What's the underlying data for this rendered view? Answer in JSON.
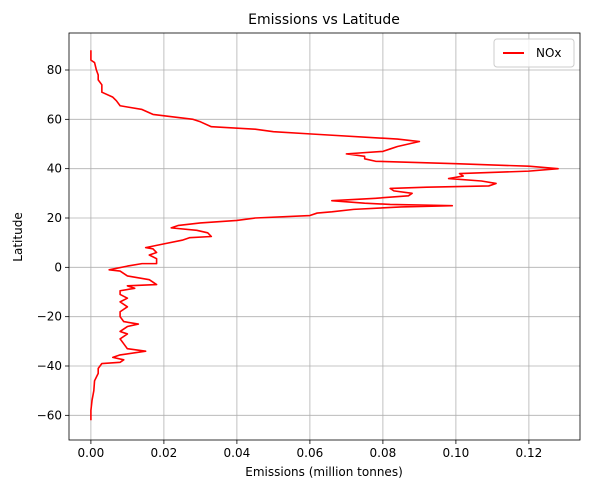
{
  "chart_data": {
    "type": "line",
    "title": "Emissions vs Latitude",
    "xlabel": "Emissions (million tonnes)",
    "ylabel": "Latitude",
    "xlim": [
      -0.006,
      0.134
    ],
    "ylim": [
      -70,
      95
    ],
    "xticks": [
      0.0,
      0.02,
      0.04,
      0.06,
      0.08,
      0.1,
      0.12
    ],
    "xtick_labels": [
      "0.00",
      "0.02",
      "0.04",
      "0.06",
      "0.08",
      "0.10",
      "0.12"
    ],
    "yticks": [
      -60,
      -40,
      -20,
      0,
      20,
      40,
      60,
      80
    ],
    "ytick_labels": [
      "−60",
      "−40",
      "−20",
      "0",
      "20",
      "40",
      "60",
      "80"
    ],
    "grid": true,
    "legend_position": "top-right",
    "series": [
      {
        "name": "NOx",
        "color": "#ff0000",
        "points": [
          [
            0.0,
            -62
          ],
          [
            0.0,
            -58
          ],
          [
            0.0003,
            -54
          ],
          [
            0.0008,
            -50
          ],
          [
            0.001,
            -46
          ],
          [
            0.002,
            -43
          ],
          [
            0.002,
            -41
          ],
          [
            0.003,
            -39
          ],
          [
            0.008,
            -38.5
          ],
          [
            0.009,
            -37.5
          ],
          [
            0.006,
            -36.5
          ],
          [
            0.008,
            -35.5
          ],
          [
            0.015,
            -34
          ],
          [
            0.01,
            -33
          ],
          [
            0.009,
            -31
          ],
          [
            0.008,
            -29
          ],
          [
            0.01,
            -27
          ],
          [
            0.008,
            -26
          ],
          [
            0.01,
            -24
          ],
          [
            0.013,
            -23
          ],
          [
            0.009,
            -22
          ],
          [
            0.008,
            -20
          ],
          [
            0.008,
            -18
          ],
          [
            0.01,
            -16
          ],
          [
            0.008,
            -14
          ],
          [
            0.01,
            -12.5
          ],
          [
            0.008,
            -11
          ],
          [
            0.008,
            -9.5
          ],
          [
            0.012,
            -8.5
          ],
          [
            0.01,
            -7.5
          ],
          [
            0.018,
            -7
          ],
          [
            0.016,
            -5
          ],
          [
            0.01,
            -3.5
          ],
          [
            0.008,
            -1.5
          ],
          [
            0.005,
            -1
          ],
          [
            0.01,
            0.5
          ],
          [
            0.014,
            1.5
          ],
          [
            0.018,
            1.5
          ],
          [
            0.018,
            3.5
          ],
          [
            0.016,
            5
          ],
          [
            0.018,
            6
          ],
          [
            0.017,
            7.5
          ],
          [
            0.015,
            8
          ],
          [
            0.02,
            9.5
          ],
          [
            0.025,
            11
          ],
          [
            0.027,
            12
          ],
          [
            0.033,
            12.5
          ],
          [
            0.032,
            14
          ],
          [
            0.029,
            15
          ],
          [
            0.022,
            16
          ],
          [
            0.024,
            17
          ],
          [
            0.03,
            18
          ],
          [
            0.04,
            19
          ],
          [
            0.045,
            20
          ],
          [
            0.06,
            21
          ],
          [
            0.062,
            22
          ],
          [
            0.066,
            22.5
          ],
          [
            0.072,
            23.5
          ],
          [
            0.085,
            24.5
          ],
          [
            0.099,
            25
          ],
          [
            0.082,
            25.5
          ],
          [
            0.075,
            26
          ],
          [
            0.066,
            27
          ],
          [
            0.078,
            28
          ],
          [
            0.087,
            29
          ],
          [
            0.088,
            30
          ],
          [
            0.083,
            31
          ],
          [
            0.082,
            32
          ],
          [
            0.092,
            32.5
          ],
          [
            0.109,
            33
          ],
          [
            0.111,
            34
          ],
          [
            0.107,
            35
          ],
          [
            0.098,
            36
          ],
          [
            0.102,
            37
          ],
          [
            0.101,
            38
          ],
          [
            0.12,
            39
          ],
          [
            0.128,
            40
          ],
          [
            0.12,
            41
          ],
          [
            0.1,
            42
          ],
          [
            0.078,
            43
          ],
          [
            0.075,
            44
          ],
          [
            0.075,
            45
          ],
          [
            0.07,
            46
          ],
          [
            0.08,
            47
          ],
          [
            0.082,
            48
          ],
          [
            0.084,
            49
          ],
          [
            0.09,
            51
          ],
          [
            0.084,
            52
          ],
          [
            0.061,
            54
          ],
          [
            0.05,
            55
          ],
          [
            0.045,
            56
          ],
          [
            0.033,
            57
          ],
          [
            0.03,
            59
          ],
          [
            0.028,
            60
          ],
          [
            0.017,
            62
          ],
          [
            0.014,
            64
          ],
          [
            0.01,
            65
          ],
          [
            0.008,
            65.5
          ],
          [
            0.007,
            67.5
          ],
          [
            0.006,
            69
          ],
          [
            0.003,
            71
          ],
          [
            0.003,
            74
          ],
          [
            0.002,
            76
          ],
          [
            0.002,
            78
          ],
          [
            0.0015,
            80
          ],
          [
            0.001,
            83
          ],
          [
            0.0,
            84
          ],
          [
            0.0,
            88
          ]
        ]
      }
    ]
  }
}
